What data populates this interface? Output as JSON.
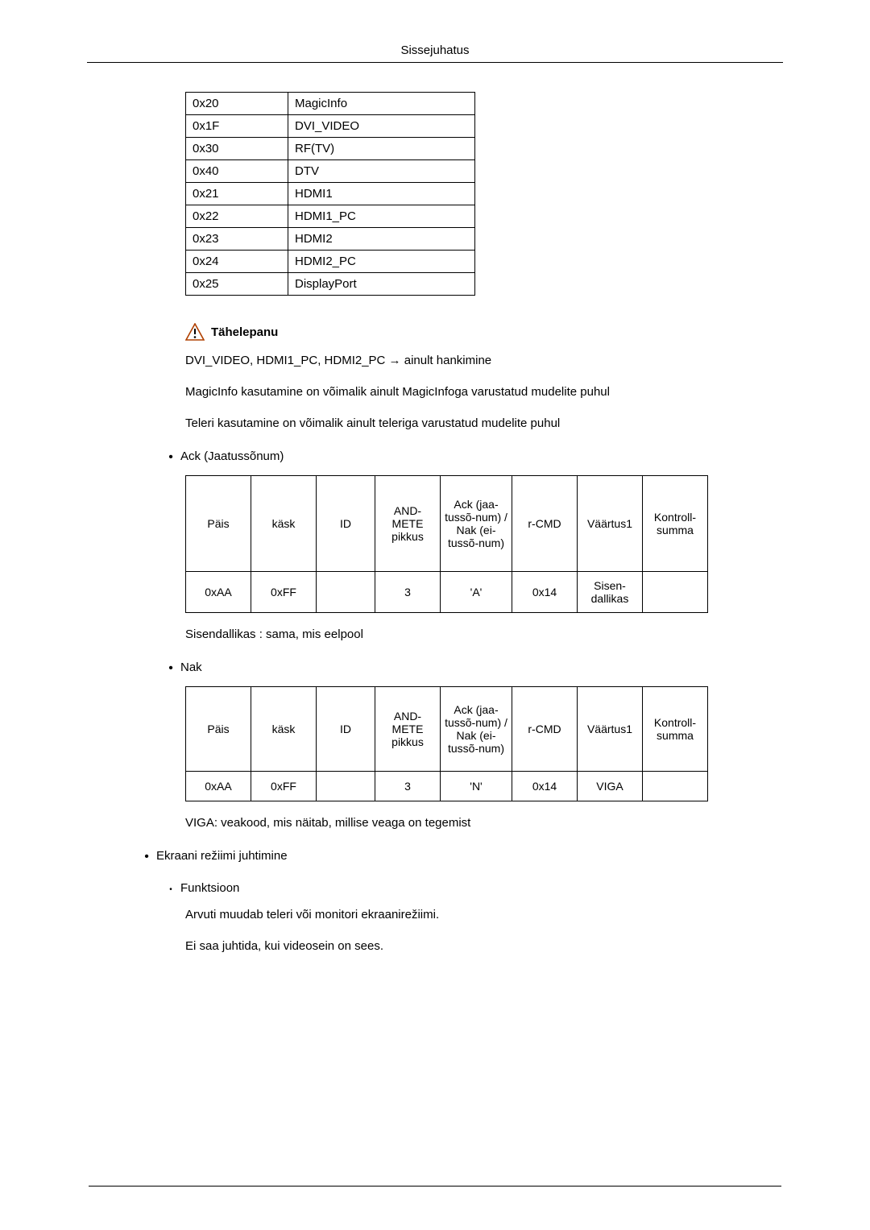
{
  "meta": {
    "chapter_title": "Sissejuhatus"
  },
  "codes_table": {
    "rows": [
      {
        "hex": "0x20",
        "name": "MagicInfo"
      },
      {
        "hex": "0x1F",
        "name": "DVI_VIDEO"
      },
      {
        "hex": "0x30",
        "name": "RF(TV)"
      },
      {
        "hex": "0x40",
        "name": "DTV"
      },
      {
        "hex": "0x21",
        "name": "HDMI1"
      },
      {
        "hex": "0x22",
        "name": "HDMI1_PC"
      },
      {
        "hex": "0x23",
        "name": "HDMI2"
      },
      {
        "hex": "0x24",
        "name": "HDMI2_PC"
      },
      {
        "hex": "0x25",
        "name": "DisplayPort"
      }
    ]
  },
  "warning": {
    "label": "Tähelepanu",
    "lines": [
      "DVI_VIDEO, HDMI1_PC, HDMI2_PC → ainult hankimine",
      "MagicInfo kasutamine on võimalik ainult MagicInfoga varustatud mudelite puhul",
      "Teleri kasutamine on võimalik ainult teleriga varustatud mudelite puhul"
    ],
    "triangle_stroke": "#b04000",
    "triangle_fill": "#ffffff",
    "bang_color": "#000000"
  },
  "ack": {
    "title": "Ack (Jaatussõnum)",
    "headers": [
      "Päis",
      "käsk",
      "ID",
      "AND-METE pikkus",
      "Ack (jaa-tussõ-num) / Nak (ei-tussõ-num)",
      "r-CMD",
      "Väärtus1",
      "Kontroll-summa"
    ],
    "row": [
      "0xAA",
      "0xFF",
      "",
      "3",
      "'A'",
      "0x14",
      "Sisen-dallikas",
      ""
    ],
    "note": "Sisendallikas : sama, mis eelpool"
  },
  "nak": {
    "title": "Nak",
    "headers": [
      "Päis",
      "käsk",
      "ID",
      "AND-METE pikkus",
      "Ack (jaa-tussõ-num) / Nak (ei-tussõ-num)",
      "r-CMD",
      "Väärtus1",
      "Kontroll-summa"
    ],
    "row": [
      "0xAA",
      "0xFF",
      "",
      "3",
      "'N'",
      "0x14",
      "VIGA",
      ""
    ],
    "note": "VIGA: veakood, mis näitab, millise veaga on tegemist"
  },
  "screen_mode": {
    "title": "Ekraani režiimi juhtimine",
    "func": {
      "label": "Funktsioon",
      "lines": [
        "Arvuti muudab teleri või monitori ekraanirežiimi.",
        "Ei saa juhtida, kui videosein on sees."
      ]
    }
  }
}
